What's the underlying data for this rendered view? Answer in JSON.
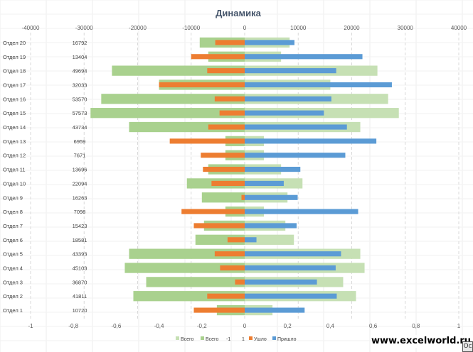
{
  "watermark": "www.excelworld.ru",
  "corner_button": "Oc",
  "colors": {
    "total": "#a9d18e",
    "total_light": "#c6e0b4",
    "left": "#ed7d31",
    "arrived": "#5b9bd5",
    "title": "#44546a",
    "axis_text": "#595959",
    "grid": "#d9d9d9"
  },
  "chart_data": {
    "type": "bar",
    "orientation": "horizontal",
    "title": "Динамика",
    "categories": [
      "Отдел 1",
      "Отдел 2",
      "Отдел 3",
      "Отдел 4",
      "Отдел 5",
      "Отдел 6",
      "Отдел 7",
      "Отдел 8",
      "Отдел 9",
      "Отдел 10",
      "Отдел 11",
      "Отдел 12",
      "Отдел 13",
      "Отдел 14",
      "Отдел 15",
      "Отдел 16",
      "Отдел 17",
      "Отдел 18",
      "Отдел 19",
      "Отдел 20"
    ],
    "category_values": [
      "10720",
      "41811",
      "36870",
      "45103",
      "43393",
      "18581",
      "15423",
      "7098",
      "16263",
      "22094",
      "13696",
      "7671",
      "6959",
      "43734",
      "57573",
      "53570",
      "32033",
      "49694",
      "13404",
      "16792"
    ],
    "top_axis": {
      "min": -40000,
      "max": 40000,
      "ticks": [
        "-40000",
        "-30000",
        "-20000",
        "-10000",
        "0",
        "10000",
        "20000",
        "30000",
        "40000"
      ]
    },
    "bottom_axis": {
      "min": -1,
      "max": 1,
      "ticks": [
        "-1",
        "-0,8",
        "-0,6",
        "-0,4",
        "-0,2",
        "0",
        "0,2",
        "0,4",
        "0,6",
        "0,8",
        "1"
      ]
    },
    "series": [
      {
        "name": "Всего",
        "values": [
          -0.13,
          -0.52,
          -0.46,
          -0.56,
          -0.54,
          -0.23,
          -0.19,
          -0.09,
          -0.2,
          -0.27,
          -0.17,
          -0.09,
          -0.09,
          -0.54,
          -0.72,
          -0.67,
          -0.4,
          -0.62,
          -0.17,
          -0.21
        ]
      },
      {
        "name": "Всего",
        "values": [
          0.13,
          0.52,
          0.46,
          0.56,
          0.54,
          0.23,
          0.19,
          0.09,
          0.2,
          0.27,
          0.17,
          0.09,
          0.09,
          0.54,
          0.72,
          0.67,
          0.4,
          0.62,
          0.17,
          0.21
        ]
      },
      {
        "name": "Ушло",
        "values": [
          -9500,
          -7000,
          -1800,
          -4600,
          -5600,
          -3200,
          -9500,
          -11800,
          -600,
          -6200,
          -7800,
          -8200,
          -14000,
          -6800,
          -4700,
          -5600,
          -16000,
          -7000,
          -10000,
          -5500
        ]
      },
      {
        "name": "Пришло",
        "values": [
          11200,
          17200,
          13500,
          17000,
          18000,
          2200,
          9700,
          21200,
          9900,
          7300,
          10400,
          18800,
          24600,
          19100,
          14800,
          16200,
          27500,
          17100,
          22000,
          9300
        ]
      }
    ],
    "legend": {
      "position": "bottom",
      "entries": [
        "Всего",
        "Всего",
        "-1",
        "1",
        "Ушло",
        "Пришло"
      ]
    },
    "grid": true
  }
}
